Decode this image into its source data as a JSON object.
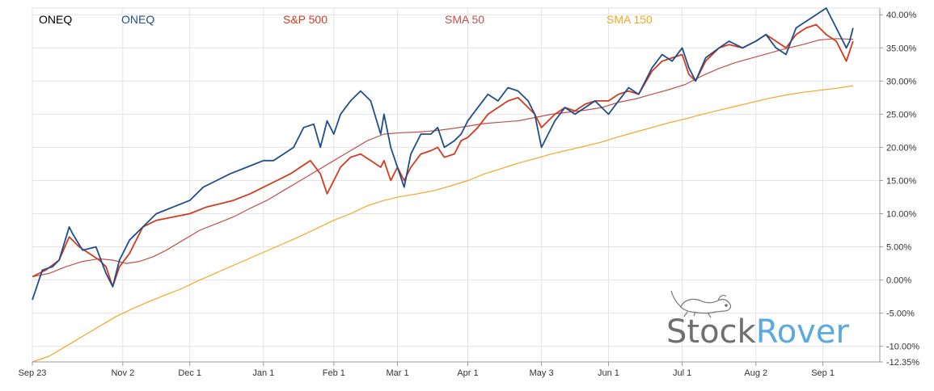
{
  "chart_data": {
    "type": "line",
    "title": "ONEQ",
    "legend": [
      {
        "name": "ONEQ",
        "color": "#1f4e8c"
      },
      {
        "name": "S&P 500",
        "color": "#d33a1f"
      },
      {
        "name": "SMA 50",
        "color": "#c0504d"
      },
      {
        "name": "SMA 150",
        "color": "#f5a623"
      }
    ],
    "x_ticks": [
      "Sep 23",
      "Nov 2",
      "Dec 1",
      "Jan 1",
      "Feb 1",
      "Mar 1",
      "Apr 1",
      "May 3",
      "Jun 1",
      "Jul 1",
      "Aug 2",
      "Sep 1"
    ],
    "x_tick_index": [
      0,
      27,
      47,
      69,
      90,
      109,
      130,
      152,
      172,
      194,
      216,
      236
    ],
    "x_max_index": 253,
    "y_ticks": [
      "40.00%",
      "35.00%",
      "30.00%",
      "25.00%",
      "20.00%",
      "15.00%",
      "10.00%",
      "5.00%",
      "0.00%",
      "-5.00%",
      "-10.00%",
      "-12.35%"
    ],
    "y_tick_values": [
      40,
      35,
      30,
      25,
      20,
      15,
      10,
      5,
      0,
      -5,
      -10,
      -12.35
    ],
    "ylim": [
      -12.35,
      41
    ],
    "grid": true,
    "series": [
      {
        "name": "ONEQ",
        "color": "#1f4e8c",
        "width": 1.8,
        "anchors": [
          [
            0,
            -3
          ],
          [
            3,
            1.5
          ],
          [
            6,
            2
          ],
          [
            8,
            3
          ],
          [
            11,
            8
          ],
          [
            12,
            7
          ],
          [
            15,
            4.5
          ],
          [
            19,
            5
          ],
          [
            22,
            1
          ],
          [
            24,
            -1
          ],
          [
            26,
            3
          ],
          [
            29,
            6
          ],
          [
            33,
            8
          ],
          [
            37,
            10
          ],
          [
            42,
            11
          ],
          [
            47,
            12
          ],
          [
            51,
            14
          ],
          [
            55,
            15
          ],
          [
            59,
            16
          ],
          [
            64,
            17
          ],
          [
            69,
            18
          ],
          [
            72,
            18
          ],
          [
            75,
            19
          ],
          [
            78,
            20
          ],
          [
            81,
            23
          ],
          [
            84,
            23.5
          ],
          [
            86,
            20
          ],
          [
            88,
            24
          ],
          [
            90,
            22
          ],
          [
            92,
            25
          ],
          [
            95,
            27
          ],
          [
            98,
            28.5
          ],
          [
            101,
            27
          ],
          [
            104,
            22
          ],
          [
            105,
            25
          ],
          [
            107,
            20
          ],
          [
            109,
            17
          ],
          [
            111,
            14
          ],
          [
            113,
            19
          ],
          [
            116,
            22
          ],
          [
            119,
            22
          ],
          [
            121,
            23
          ],
          [
            123,
            20
          ],
          [
            126,
            21
          ],
          [
            128,
            22
          ],
          [
            130,
            24
          ],
          [
            133,
            26
          ],
          [
            136,
            28
          ],
          [
            139,
            27
          ],
          [
            142,
            29
          ],
          [
            145,
            28.5
          ],
          [
            148,
            27
          ],
          [
            150,
            25
          ],
          [
            152,
            20
          ],
          [
            154,
            22
          ],
          [
            156,
            24
          ],
          [
            159,
            26
          ],
          [
            162,
            25
          ],
          [
            165,
            26
          ],
          [
            168,
            27
          ],
          [
            172,
            25
          ],
          [
            175,
            27
          ],
          [
            178,
            29
          ],
          [
            181,
            28
          ],
          [
            185,
            32
          ],
          [
            188,
            34
          ],
          [
            191,
            33
          ],
          [
            194,
            35
          ],
          [
            196,
            32
          ],
          [
            198,
            30
          ],
          [
            201,
            33.5
          ],
          [
            205,
            35
          ],
          [
            208,
            36
          ],
          [
            212,
            35
          ],
          [
            216,
            36
          ],
          [
            219,
            37
          ],
          [
            222,
            35
          ],
          [
            225,
            34
          ],
          [
            228,
            38
          ],
          [
            231,
            39
          ],
          [
            234,
            40
          ],
          [
            237,
            41
          ],
          [
            240,
            38
          ],
          [
            243,
            35
          ],
          [
            244,
            36
          ],
          [
            245,
            38
          ]
        ]
      },
      {
        "name": "S&P 500",
        "color": "#d33a1f",
        "width": 1.8,
        "anchors": [
          [
            0,
            0.5
          ],
          [
            4,
            1.5
          ],
          [
            8,
            3
          ],
          [
            11,
            6.5
          ],
          [
            14,
            5
          ],
          [
            17,
            4
          ],
          [
            20,
            3
          ],
          [
            22,
            2
          ],
          [
            24,
            -1
          ],
          [
            26,
            2
          ],
          [
            29,
            4
          ],
          [
            33,
            8
          ],
          [
            37,
            9
          ],
          [
            42,
            9.5
          ],
          [
            47,
            10
          ],
          [
            52,
            11
          ],
          [
            56,
            11.5
          ],
          [
            60,
            12
          ],
          [
            65,
            13
          ],
          [
            69,
            14
          ],
          [
            73,
            15
          ],
          [
            77,
            16
          ],
          [
            80,
            17
          ],
          [
            83,
            18
          ],
          [
            86,
            16
          ],
          [
            88,
            13
          ],
          [
            90,
            15
          ],
          [
            92,
            17
          ],
          [
            95,
            18.5
          ],
          [
            98,
            19
          ],
          [
            101,
            18
          ],
          [
            104,
            17
          ],
          [
            105,
            18
          ],
          [
            107,
            15
          ],
          [
            109,
            17
          ],
          [
            111,
            15
          ],
          [
            113,
            17
          ],
          [
            116,
            19
          ],
          [
            119,
            19.5
          ],
          [
            121,
            20
          ],
          [
            123,
            18.5
          ],
          [
            126,
            19
          ],
          [
            128,
            21
          ],
          [
            130,
            21.5
          ],
          [
            133,
            23
          ],
          [
            136,
            25
          ],
          [
            139,
            26
          ],
          [
            142,
            27
          ],
          [
            145,
            27.5
          ],
          [
            148,
            26
          ],
          [
            150,
            25
          ],
          [
            152,
            23
          ],
          [
            154,
            24
          ],
          [
            156,
            25
          ],
          [
            159,
            26
          ],
          [
            162,
            25.5
          ],
          [
            165,
            26.5
          ],
          [
            168,
            27
          ],
          [
            172,
            27
          ],
          [
            175,
            28
          ],
          [
            178,
            28.5
          ],
          [
            181,
            28
          ],
          [
            185,
            31.5
          ],
          [
            188,
            33
          ],
          [
            191,
            33.5
          ],
          [
            194,
            34
          ],
          [
            196,
            31
          ],
          [
            198,
            30
          ],
          [
            201,
            33
          ],
          [
            205,
            35
          ],
          [
            208,
            35.5
          ],
          [
            212,
            35
          ],
          [
            216,
            36
          ],
          [
            219,
            37
          ],
          [
            222,
            36
          ],
          [
            225,
            35
          ],
          [
            228,
            37
          ],
          [
            231,
            38
          ],
          [
            234,
            38.5
          ],
          [
            237,
            37
          ],
          [
            240,
            36
          ],
          [
            243,
            33
          ],
          [
            245,
            36
          ]
        ]
      },
      {
        "name": "SMA 50",
        "color": "#c0504d",
        "width": 1.2,
        "anchors": [
          [
            0,
            0.5
          ],
          [
            5,
            1
          ],
          [
            10,
            2
          ],
          [
            15,
            2.8
          ],
          [
            20,
            3.2
          ],
          [
            24,
            3
          ],
          [
            28,
            2.5
          ],
          [
            32,
            2.8
          ],
          [
            36,
            3.5
          ],
          [
            40,
            4.5
          ],
          [
            45,
            6
          ],
          [
            50,
            7.5
          ],
          [
            55,
            8.5
          ],
          [
            60,
            9.5
          ],
          [
            65,
            10.8
          ],
          [
            70,
            12
          ],
          [
            75,
            13.5
          ],
          [
            80,
            15
          ],
          [
            85,
            16.5
          ],
          [
            90,
            18
          ],
          [
            95,
            19.5
          ],
          [
            100,
            21
          ],
          [
            105,
            22
          ],
          [
            110,
            22.2
          ],
          [
            115,
            22.3
          ],
          [
            120,
            22.5
          ],
          [
            125,
            22.8
          ],
          [
            130,
            23.2
          ],
          [
            135,
            23.6
          ],
          [
            140,
            23.8
          ],
          [
            145,
            24
          ],
          [
            150,
            24.5
          ],
          [
            155,
            25
          ],
          [
            160,
            25.3
          ],
          [
            165,
            25.6
          ],
          [
            170,
            26
          ],
          [
            175,
            26.8
          ],
          [
            180,
            27.3
          ],
          [
            185,
            28
          ],
          [
            190,
            28.7
          ],
          [
            195,
            29.5
          ],
          [
            200,
            30.8
          ],
          [
            205,
            31.9
          ],
          [
            210,
            32.8
          ],
          [
            215,
            33.5
          ],
          [
            220,
            34.2
          ],
          [
            225,
            34.9
          ],
          [
            230,
            35.5
          ],
          [
            235,
            36.2
          ],
          [
            240,
            36.4
          ],
          [
            245,
            36.3
          ]
        ]
      },
      {
        "name": "SMA 150",
        "color": "#f5a623",
        "width": 1.2,
        "anchors": [
          [
            0,
            -12.35
          ],
          [
            5,
            -11.5
          ],
          [
            10,
            -10
          ],
          [
            15,
            -8.5
          ],
          [
            20,
            -7
          ],
          [
            25,
            -5.5
          ],
          [
            30,
            -4.3
          ],
          [
            35,
            -3.2
          ],
          [
            40,
            -2.2
          ],
          [
            45,
            -1.2
          ],
          [
            50,
            0
          ],
          [
            55,
            1.1
          ],
          [
            60,
            2.2
          ],
          [
            65,
            3.3
          ],
          [
            70,
            4.4
          ],
          [
            75,
            5.5
          ],
          [
            80,
            6.6
          ],
          [
            85,
            7.8
          ],
          [
            90,
            9
          ],
          [
            95,
            10
          ],
          [
            100,
            11.2
          ],
          [
            105,
            12
          ],
          [
            110,
            12.6
          ],
          [
            115,
            13
          ],
          [
            120,
            13.5
          ],
          [
            125,
            14.2
          ],
          [
            130,
            15
          ],
          [
            135,
            16
          ],
          [
            140,
            16.8
          ],
          [
            145,
            17.6
          ],
          [
            150,
            18.3
          ],
          [
            155,
            19
          ],
          [
            160,
            19.6
          ],
          [
            165,
            20.2
          ],
          [
            170,
            20.8
          ],
          [
            175,
            21.6
          ],
          [
            180,
            22.3
          ],
          [
            185,
            23
          ],
          [
            190,
            23.7
          ],
          [
            195,
            24.3
          ],
          [
            200,
            25
          ],
          [
            205,
            25.6
          ],
          [
            210,
            26.2
          ],
          [
            215,
            26.8
          ],
          [
            220,
            27.4
          ],
          [
            225,
            27.9
          ],
          [
            230,
            28.3
          ],
          [
            235,
            28.6
          ],
          [
            240,
            28.9
          ],
          [
            245,
            29.3
          ]
        ]
      }
    ]
  },
  "watermark": {
    "brand_left": "Stock",
    "brand_right": "Rover",
    "color_left": "#6f6f6f",
    "color_right": "#5aa9e0"
  }
}
